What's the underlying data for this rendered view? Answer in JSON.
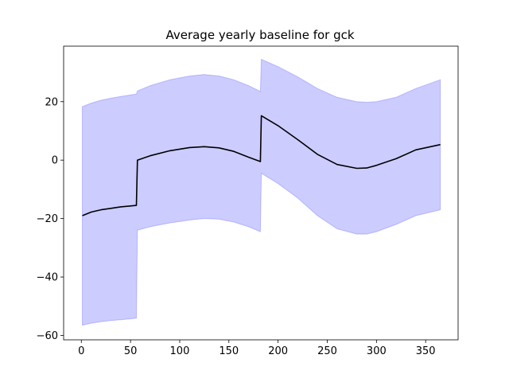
{
  "chart_data": {
    "type": "line",
    "title": "Average yearly baseline for gck",
    "xlabel": "",
    "ylabel": "",
    "xlim": [
      -18,
      383
    ],
    "ylim": [
      -61.5,
      39
    ],
    "xticks": [
      0,
      50,
      100,
      150,
      200,
      250,
      300,
      350
    ],
    "yticks": [
      -60,
      -40,
      -20,
      0,
      20
    ],
    "grid": false,
    "colors": {
      "line": "#000000",
      "band_fill": "#0000ff",
      "band_edge": "#0000ff"
    },
    "series": [
      {
        "kind": "mean_line",
        "x": [
          1,
          10,
          20,
          30,
          40,
          50,
          56,
          57,
          70,
          90,
          110,
          125,
          140,
          155,
          170,
          182,
          183,
          200,
          220,
          240,
          260,
          280,
          290,
          300,
          320,
          340,
          365
        ],
        "y": [
          -19,
          -17.8,
          -17.0,
          -16.5,
          -16.0,
          -15.7,
          -15.5,
          0,
          1.5,
          3.2,
          4.3,
          4.6,
          4.2,
          3.0,
          1.0,
          -0.5,
          15.2,
          11.8,
          7.0,
          2.0,
          -1.5,
          -2.8,
          -2.7,
          -1.8,
          0.5,
          3.5,
          5.3
        ]
      },
      {
        "kind": "band",
        "x": [
          1,
          10,
          20,
          30,
          40,
          50,
          56,
          57,
          70,
          90,
          110,
          125,
          140,
          155,
          170,
          182,
          183,
          200,
          220,
          240,
          260,
          280,
          290,
          300,
          320,
          340,
          365
        ],
        "upper": [
          18.3,
          19.5,
          20.5,
          21.2,
          21.8,
          22.3,
          22.6,
          23.7,
          25.5,
          27.5,
          28.8,
          29.3,
          28.8,
          27.5,
          25.5,
          23.5,
          34.5,
          32.0,
          28.5,
          24.5,
          21.5,
          20.0,
          19.8,
          20.0,
          21.5,
          24.5,
          27.5
        ],
        "lower": [
          -56.5,
          -55.8,
          -55.3,
          -54.9,
          -54.6,
          -54.3,
          -54.1,
          -24.0,
          -22.8,
          -21.5,
          -20.5,
          -20.0,
          -20.2,
          -21.2,
          -22.8,
          -24.5,
          -4.5,
          -8.0,
          -13.0,
          -19.0,
          -23.5,
          -25.3,
          -25.3,
          -24.5,
          -22.0,
          -19.0,
          -17.0
        ]
      }
    ]
  }
}
